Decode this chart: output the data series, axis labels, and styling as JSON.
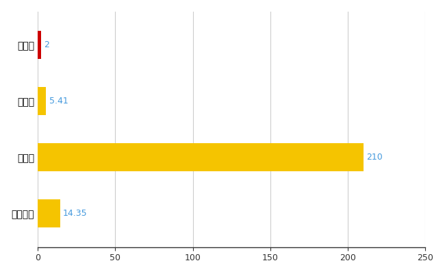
{
  "categories": [
    "由仁町",
    "県平均",
    "県最大",
    "全国平均"
  ],
  "values": [
    2,
    5.41,
    210,
    14.35
  ],
  "bar_colors": [
    "#cc0000",
    "#f5c400",
    "#f5c400",
    "#f5c400"
  ],
  "value_labels": [
    "2",
    "5.41",
    "210",
    "14.35"
  ],
  "xlim": [
    0,
    250
  ],
  "xticks": [
    0,
    50,
    100,
    150,
    200,
    250
  ],
  "background_color": "#ffffff",
  "grid_color": "#cccccc",
  "label_color": "#4499dd",
  "bar_height": 0.5,
  "figsize": [
    6.5,
    4.0
  ],
  "dpi": 100
}
